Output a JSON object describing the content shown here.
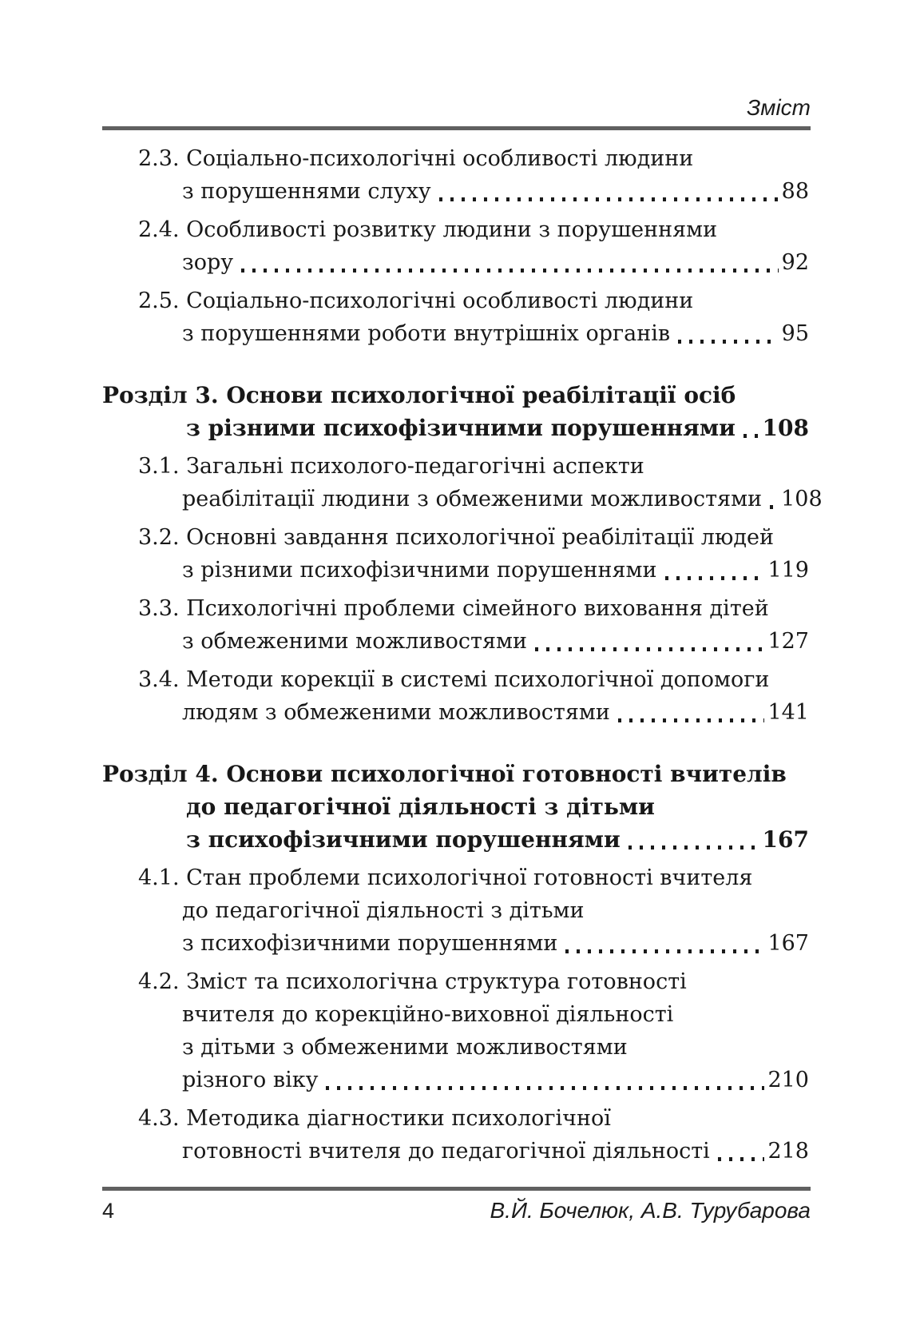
{
  "header": {
    "title": "Зміст"
  },
  "footer": {
    "page_number": "4",
    "authors": "В.Й. Бочелюк, А.В. Турубарова"
  },
  "colors": {
    "rule_gray": "#606060",
    "text": "#181818"
  },
  "toc": {
    "entries": [
      {
        "type": "subsection",
        "lines": [
          "2.3. Соціально-психологічні особливості людини",
          "з порушеннями слуху"
        ],
        "page": "88"
      },
      {
        "type": "subsection",
        "lines": [
          "2.4. Особливості розвитку людини з порушеннями",
          "зору"
        ],
        "page": "92"
      },
      {
        "type": "subsection",
        "lines": [
          "2.5. Соціально-психологічні особливості людини",
          "з порушеннями роботи внутрішніх органів"
        ],
        "page": "95"
      },
      {
        "type": "section",
        "lines": [
          "Розділ 3. Основи психологічної реабілітації осіб",
          "з різними психофізичними порушеннями"
        ],
        "page": "108"
      },
      {
        "type": "subsection",
        "lines": [
          "3.1. Загальні психолого-педагогічні аспекти",
          "реабілітації людини з обмеженими можливостями"
        ],
        "page": "108"
      },
      {
        "type": "subsection",
        "lines": [
          "3.2. Основні завдання психологічної реабілітації людей",
          "з різними психофізичними порушеннями"
        ],
        "page": "119"
      },
      {
        "type": "subsection",
        "lines": [
          "3.3. Психологічні проблеми сімейного виховання дітей",
          "з обмеженими можливостями"
        ],
        "page": "127"
      },
      {
        "type": "subsection",
        "lines": [
          "3.4. Методи корекції в системі психологічної допомоги",
          "людям з обмеженими можливостями"
        ],
        "page": "141"
      },
      {
        "type": "section",
        "lines": [
          "Розділ 4. Основи психологічної готовності вчителів",
          "до педагогічної діяльності з дітьми",
          "з психофізичними порушеннями"
        ],
        "page": "167"
      },
      {
        "type": "subsection",
        "lines": [
          "4.1. Стан проблеми психологічної готовності вчителя",
          "до педагогічної діяльності з дітьми",
          "з психофізичними порушеннями"
        ],
        "page": "167"
      },
      {
        "type": "subsection",
        "lines": [
          "4.2. Зміст та психологічна структура готовності",
          "вчителя до корекційно-виховної діяльності",
          "з дітьми з обмеженими можливостями",
          "різного віку"
        ],
        "page": "210"
      },
      {
        "type": "subsection",
        "lines": [
          "4.3. Методика діагностики психологічної",
          "готовності вчителя до педагогічної діяльності"
        ],
        "page": "218"
      }
    ]
  }
}
